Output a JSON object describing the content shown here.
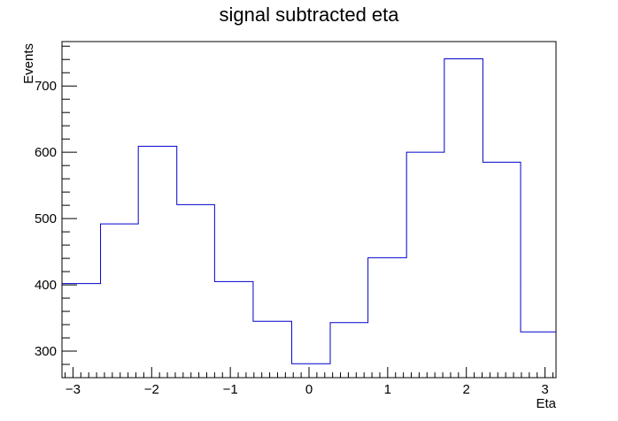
{
  "chart_data": {
    "type": "histogram",
    "title": "signal subtracted eta",
    "xlabel": "Eta",
    "ylabel": "Events",
    "xlim": [
      -3.14,
      3.14
    ],
    "ylim": [
      260,
      767
    ],
    "bin_edges": [
      -3.14,
      -2.65,
      -2.17,
      -1.68,
      -1.2,
      -0.71,
      -0.22,
      0.27,
      0.75,
      1.24,
      1.72,
      2.21,
      2.69,
      3.14
    ],
    "values": [
      402,
      492,
      609,
      521,
      405,
      345,
      281,
      343,
      441,
      600,
      741,
      585,
      329
    ],
    "x_ticks": [
      -3,
      -2,
      -1,
      0,
      1,
      2,
      3
    ],
    "x_tick_labels": [
      "−3",
      "−2",
      "−1",
      "0",
      "1",
      "2",
      "3"
    ],
    "y_ticks": [
      300,
      400,
      500,
      600,
      700
    ],
    "y_tick_labels": [
      "300",
      "400",
      "500",
      "600",
      "700"
    ],
    "line_color": "#0000cc",
    "grid": false,
    "legend": "none"
  }
}
